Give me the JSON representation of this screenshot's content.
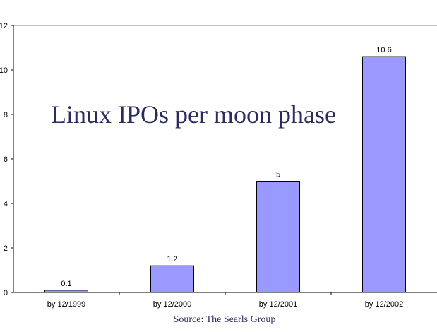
{
  "chart_data": {
    "type": "bar",
    "title": "Linux IPOs per moon phase",
    "source": "Source: The Searls Group",
    "categories": [
      "by 12/1999",
      "by 12/2000",
      "by 12/2001",
      "by 12/2002"
    ],
    "values": [
      0.1,
      1.2,
      5,
      10.6
    ],
    "data_labels": [
      "0.1",
      "1.2",
      "5",
      "10.6"
    ],
    "yticks": [
      0,
      2,
      4,
      6,
      8,
      10,
      12
    ],
    "ylim": [
      0,
      12
    ],
    "xlabel": "",
    "ylabel": "",
    "grid": false,
    "legend": "none",
    "colors": {
      "bar": "#9999ff",
      "title": "#2b2b60",
      "top_line": "#808080"
    }
  }
}
